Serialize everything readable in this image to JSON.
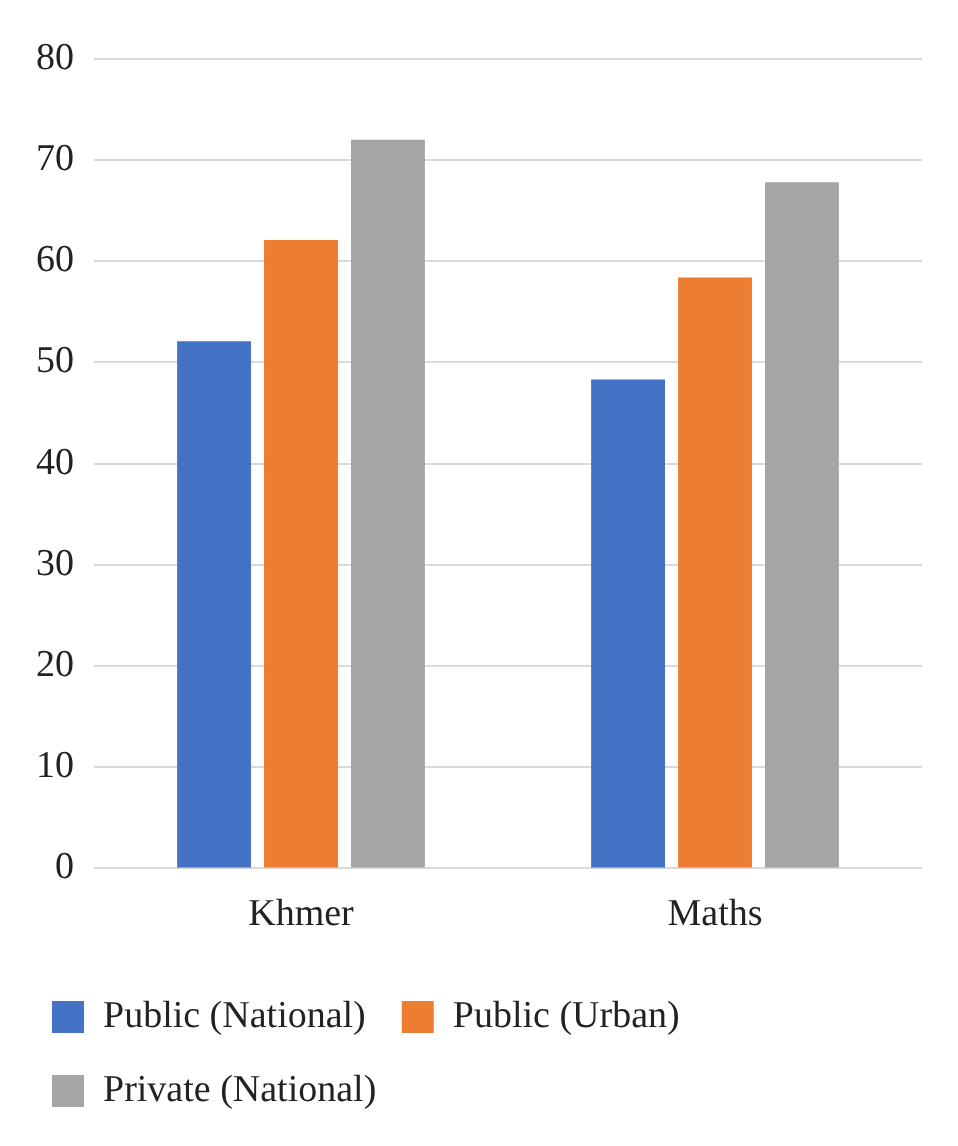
{
  "chart_data": {
    "type": "bar",
    "categories": [
      "Khmer",
      "Maths"
    ],
    "series": [
      {
        "name": "Public (National)",
        "color": "#4472c4",
        "values": [
          52.1,
          48.3
        ]
      },
      {
        "name": "Public (Urban)",
        "color": "#ed7d31",
        "values": [
          62.1,
          58.4
        ]
      },
      {
        "name": "Private (National)",
        "color": "#a5a5a5",
        "values": [
          72,
          67.8
        ]
      }
    ],
    "ylim": [
      0,
      80
    ],
    "yticks": [
      0,
      10,
      20,
      30,
      40,
      50,
      60,
      70,
      80
    ],
    "grid": "y",
    "legend": "bottom"
  }
}
